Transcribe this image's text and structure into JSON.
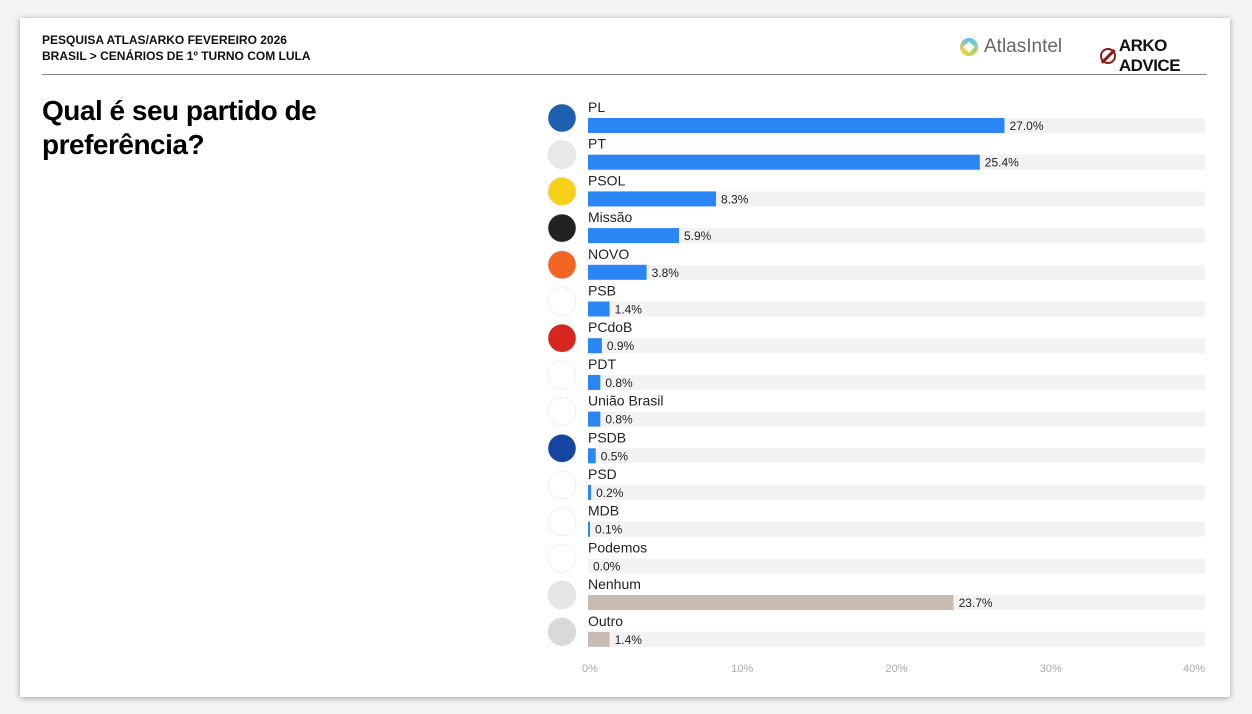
{
  "header": {
    "line1": "PESQUISA ATLAS/ARKO FEVEREIRO 2026",
    "line2": "BRASIL > CENÁRIOS DE 1º TURNO COM LULA",
    "logos": {
      "atlas": "AtlasIntel",
      "arko": "ARKO ADVICE"
    }
  },
  "question": "Qual é seu partido de preferência?",
  "colors": {
    "party_bar": "#2b86f5",
    "other_bar": "#c9bbb1",
    "track": "#f2f2f2"
  },
  "chart_data": {
    "type": "bar",
    "orientation": "horizontal",
    "categories": [
      "PL",
      "PT",
      "PSOL",
      "Missão",
      "NOVO",
      "PSB",
      "PCdoB",
      "PDT",
      "União Brasil",
      "PSDB",
      "PSD",
      "MDB",
      "Podemos",
      "Nenhum",
      "Outro"
    ],
    "values": [
      27.0,
      25.4,
      8.3,
      5.9,
      3.8,
      1.4,
      0.9,
      0.8,
      0.8,
      0.5,
      0.2,
      0.1,
      0.0,
      23.7,
      1.4
    ],
    "value_labels": [
      "27.0%",
      "25.4%",
      "8.3%",
      "5.9%",
      "3.8%",
      "1.4%",
      "0.9%",
      "0.8%",
      "0.8%",
      "0.5%",
      "0.2%",
      "0.1%",
      "0.0%",
      "23.7%",
      "1.4%"
    ],
    "icons": [
      "pl-logo",
      "pt-star-logo",
      "psol-logo",
      "missao-logo",
      "novo-logo",
      "psb-logo",
      "pcdob-logo",
      "pdt-logo",
      "uniao-brasil-logo",
      "psdb-logo",
      "psd-logo",
      "mdb-logo",
      "podemos-logo",
      "none-icon",
      "person-icon"
    ],
    "icon_colors": [
      "#1f5fb0",
      "#e8e8e8",
      "#f7d117",
      "#222222",
      "#f26522",
      "#ffffff",
      "#d7261e",
      "#ffffff",
      "#ffffff",
      "#1746a2",
      "#ffffff",
      "#ffffff",
      "#ffffff",
      "#e6e6e6",
      "#d9d9d9"
    ],
    "xlim": [
      0,
      40
    ],
    "x_ticks": [
      0,
      10,
      20,
      30,
      40
    ],
    "x_tick_labels": [
      "0%",
      "10%",
      "20%",
      "30%",
      "40%"
    ],
    "grid": false
  }
}
